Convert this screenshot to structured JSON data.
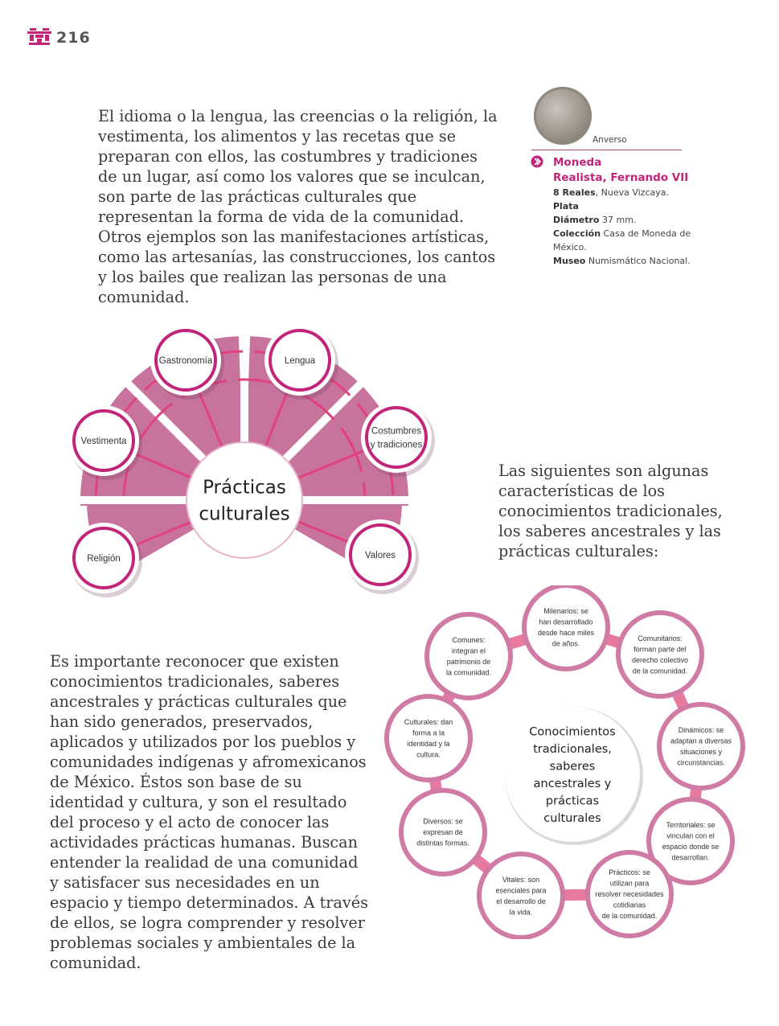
{
  "page": {
    "number": "216"
  },
  "paragraphs": {
    "p1": "El idioma o la lengua, las creencias o la religión, la vestimenta, los alimentos y las recetas que se preparan con ellos, las costumbres y tradiciones de un lugar, así como los valores que se inculcan, son parte de las prácticas culturales que representan la forma de vida de la comunidad. Otros ejemplos son las manifestaciones artísticas, como las artesanías, las construcciones, los cantos y los bailes que realizan las personas de una comunidad.",
    "p2": "Las siguientes son algunas características de los conocimientos tradicionales, los saberes ancestrales y las prácticas culturales:",
    "p3": "Es importante reconocer que existen conocimientos tradicionales, saberes ancestrales y prácticas culturales que han sido generados, preservados, aplicados y utilizados por los pueblos y comunidades indígenas y afromexicanos de México. Éstos son base de su identidad y cultura, y son el resultado del proceso y el acto de conocer las actividades prácticas humanas. Buscan entender la realidad de una comunidad y satisfacer sus necesidades en un espacio y tiempo determinados. A través de ellos, se logra comprender y resolver problemas sociales y ambientales de la comunidad."
  },
  "coin": {
    "side_label": "Anverso",
    "title_line1": "Moneda",
    "title_line2": "Realista, Fernando VII",
    "reales_label": "8 Reales",
    "reales_value": ", Nueva Vizcaya.",
    "material_label": "Plata",
    "diametro_label": "Diámetro",
    "diametro_value": " 37 mm.",
    "coleccion_label": "Colección",
    "coleccion_value": " Casa de Moneda de México.",
    "museo_label": "Museo",
    "museo_value": " Numismático Nacional."
  },
  "diagram1": {
    "center": [
      "Prácticas",
      "culturales"
    ],
    "nodes": [
      [
        "Gastronomía"
      ],
      [
        "Lengua"
      ],
      [
        "Vestimenta"
      ],
      [
        "Costumbres",
        "y tradiciones"
      ],
      [
        "Religión"
      ],
      [
        "Valores"
      ]
    ]
  },
  "diagram2": {
    "center": [
      "Conocimientos",
      "tradicionales,",
      "saberes",
      "ancestrales y",
      "prácticas",
      "culturales"
    ],
    "nodes": [
      [
        "Milenarios: se",
        "han desarrollado",
        "desde hace miles",
        "de años."
      ],
      [
        "Comunitarios:",
        "forman parte del",
        "derecho colectivo",
        "de la comunidad."
      ],
      [
        "Dinámicos: se",
        "adaptan a diversas",
        "situaciones y",
        "circunstancias."
      ],
      [
        "Territoriales: se",
        "vinculan con el",
        "espacio donde se",
        "desarrollan."
      ],
      [
        "Prácticos: se",
        "utilizan para",
        "resolver necesidades",
        "cotidianas",
        "de la comunidad."
      ],
      [
        "Vitales: son",
        "esenciales para",
        "el desarrollo de",
        "la vida."
      ],
      [
        "Diversos: se",
        "expresan de",
        "distintas formas."
      ],
      [
        "Culturales: dan",
        "forma a la",
        "identidad y la",
        "cultura."
      ],
      [
        "Comunes:",
        "integran el",
        "patrimonio de",
        "la comunidad."
      ]
    ]
  },
  "colors": {
    "accent": "#c2247a",
    "fan": "#c8739d",
    "ring": "#d07ba5",
    "line": "#e0417f"
  }
}
